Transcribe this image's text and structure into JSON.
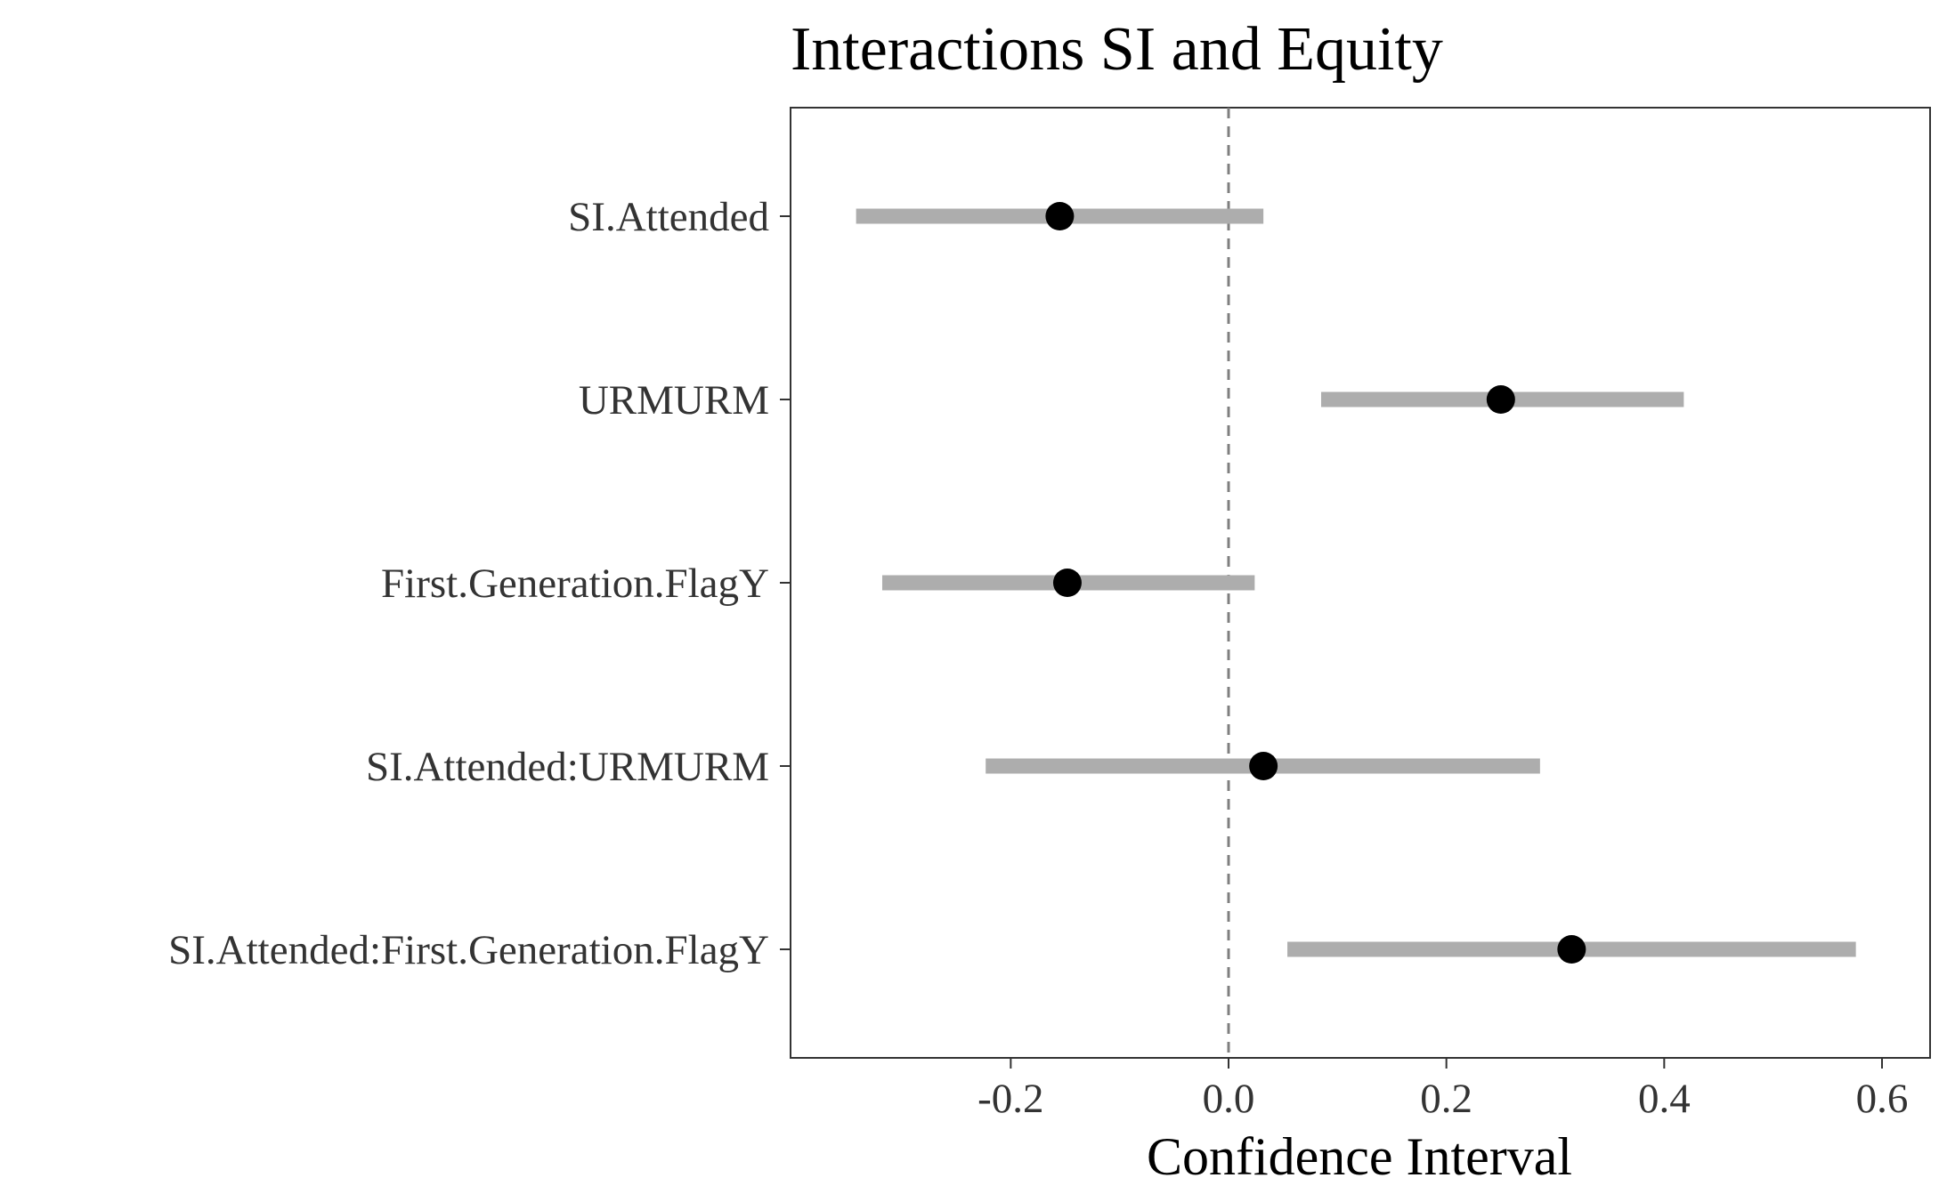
{
  "chart_data": {
    "type": "forest",
    "title": "Interactions SI and Equity",
    "xlabel": "Confidence Interval",
    "ylabel": "",
    "xlim": [
      -0.38,
      0.62
    ],
    "xticks": [
      -0.2,
      0.0,
      0.2,
      0.4,
      0.6
    ],
    "xtick_labels": [
      "-0.2",
      "0.0",
      "0.2",
      "0.4",
      "0.6"
    ],
    "reference_line": 0.0,
    "grid": false,
    "categories": [
      "SI.Attended",
      "URMURM",
      "First.Generation.FlagY",
      "SI.Attended:URMURM",
      "SI.Attended:First.Generation.FlagY"
    ],
    "estimates": [
      -0.155,
      0.25,
      -0.148,
      0.032,
      0.315
    ],
    "lower": [
      -0.342,
      0.085,
      -0.318,
      -0.223,
      0.054
    ],
    "upper": [
      0.032,
      0.418,
      0.024,
      0.286,
      0.576
    ],
    "colors": {
      "interval": "#adadad",
      "point": "#000000",
      "reference_line": "#7f7f7f",
      "panel_border": "#333333",
      "tick_text": "#333333"
    }
  }
}
